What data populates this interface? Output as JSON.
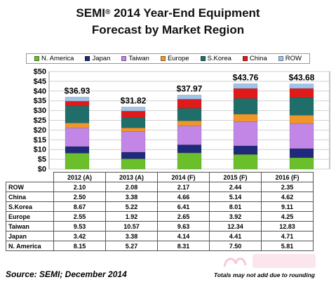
{
  "title_line1": "SEMI",
  "title_reg": "®",
  "title_line1_rest": " 2014 Year-End Equipment",
  "title_line2": "Forecast by Market Region",
  "legend": [
    {
      "name": "N. America",
      "color": "#6abf2a"
    },
    {
      "name": "Japan",
      "color": "#1f2a7a"
    },
    {
      "name": "Taiwan",
      "color": "#c186e6"
    },
    {
      "name": "Europe",
      "color": "#f0962a"
    },
    {
      "name": "S.Korea",
      "color": "#1f6e6a"
    },
    {
      "name": "China",
      "color": "#e01a1a"
    },
    {
      "name": "ROW",
      "color": "#9ec4ea"
    }
  ],
  "chart_data": {
    "type": "bar",
    "stacked": true,
    "categories": [
      "2012 (A)",
      "2013 (A)",
      "2014 (F)",
      "2015 (F)",
      "2016 (F)"
    ],
    "series": [
      {
        "name": "N. America",
        "values": [
          8.15,
          5.27,
          8.31,
          7.5,
          5.81
        ]
      },
      {
        "name": "Japan",
        "values": [
          3.42,
          3.38,
          4.14,
          4.41,
          4.71
        ]
      },
      {
        "name": "Taiwan",
        "values": [
          9.53,
          10.57,
          9.63,
          12.34,
          12.83
        ]
      },
      {
        "name": "Europe",
        "values": [
          2.55,
          1.92,
          2.65,
          3.92,
          4.25
        ]
      },
      {
        "name": "S.Korea",
        "values": [
          8.67,
          5.22,
          6.41,
          8.01,
          9.11
        ]
      },
      {
        "name": "China",
        "values": [
          2.5,
          3.38,
          4.66,
          5.14,
          4.62
        ]
      },
      {
        "name": "ROW",
        "values": [
          2.1,
          2.08,
          2.17,
          2.44,
          2.35
        ]
      }
    ],
    "totals": [
      "$36.93",
      "$31.82",
      "$37.97",
      "$43.76",
      "$43.68"
    ],
    "y_ticks": [
      "$0",
      "$5",
      "$10",
      "$15",
      "$20",
      "$25",
      "$30",
      "$35",
      "$40",
      "$45",
      "$50"
    ],
    "ylim": [
      0,
      50
    ],
    "grid": true
  },
  "table": {
    "columns": [
      "2012 (A)",
      "2013 (A)",
      "2014 (F)",
      "2015 (F)",
      "2016 (F)"
    ],
    "rows": [
      {
        "label": "ROW",
        "values": [
          "2.10",
          "2.08",
          "2.17",
          "2.44",
          "2.35"
        ]
      },
      {
        "label": "China",
        "values": [
          "2.50",
          "3.38",
          "4.66",
          "5.14",
          "4.62"
        ]
      },
      {
        "label": "S.Korea",
        "values": [
          "8.67",
          "5.22",
          "6.41",
          "8.01",
          "9.11"
        ]
      },
      {
        "label": "Europe",
        "values": [
          "2.55",
          "1.92",
          "2.65",
          "3.92",
          "4.25"
        ]
      },
      {
        "label": "Taiwan",
        "values": [
          "9.53",
          "10.57",
          "9.63",
          "12.34",
          "12.83"
        ]
      },
      {
        "label": "Japan",
        "values": [
          "3.42",
          "3.38",
          "4.14",
          "4.41",
          "4.71"
        ]
      },
      {
        "label": "N. America",
        "values": [
          "8.15",
          "5.27",
          "8.31",
          "7.50",
          "5.81"
        ]
      }
    ]
  },
  "source": "Source: SEMI; December 2014",
  "note": "Totals may not add due to rounding"
}
